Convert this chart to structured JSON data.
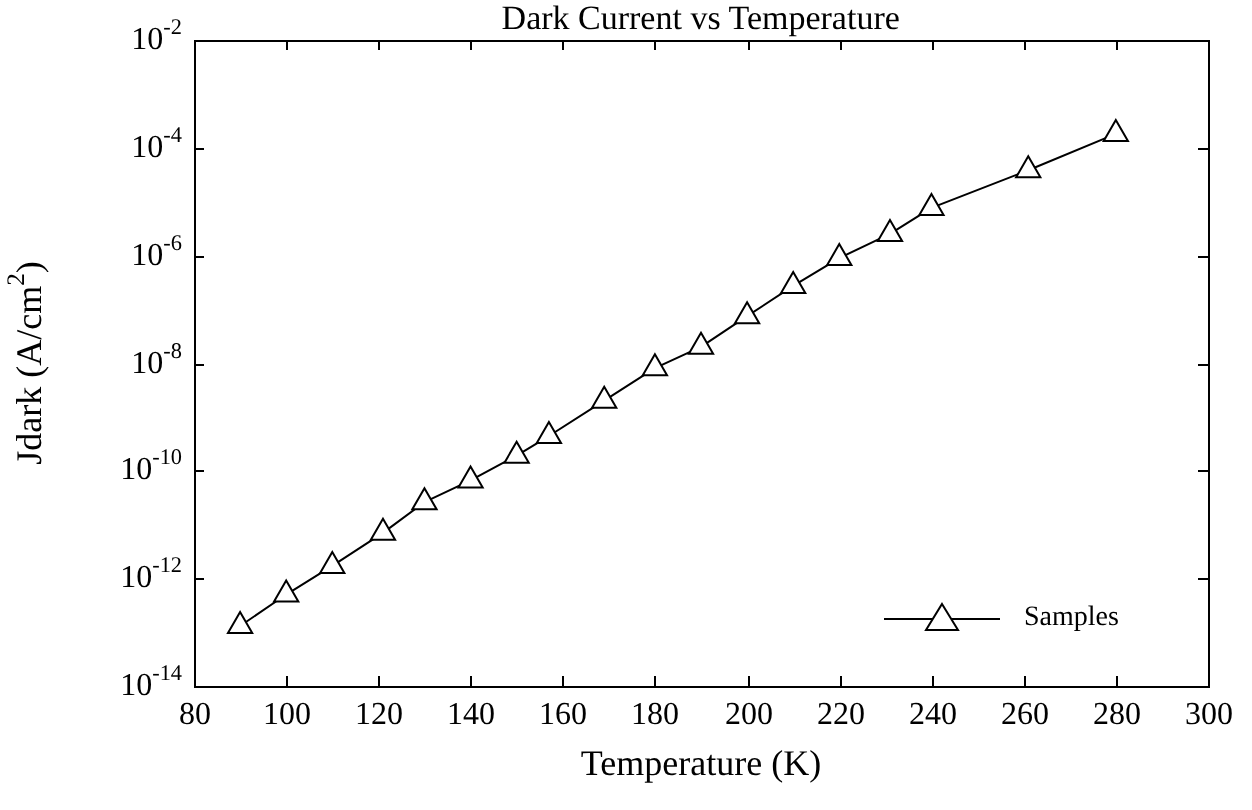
{
  "chart_data": {
    "type": "line",
    "title": "Dark Current vs Temperature",
    "xlabel": "Temperature (K)",
    "ylabel": "Jdark (A/cm$^{2}$)",
    "log": "y",
    "grid": false,
    "legend": "bottom right",
    "marker": "triangle",
    "line_style": "solid",
    "xlim": [
      80,
      300
    ],
    "xticks": [
      80,
      100,
      120,
      140,
      160,
      180,
      200,
      220,
      240,
      260,
      280,
      300
    ],
    "ylim": [
      1e-14,
      0.01
    ],
    "yticks": [
      {
        "value": 1e-14,
        "label": "10$^{-14}$"
      },
      {
        "value": 1e-12,
        "label": "10$^{-12}$"
      },
      {
        "value": 1e-10,
        "label": "10$^{-10}$"
      },
      {
        "value": 1e-08,
        "label": "10$^{-8}$"
      },
      {
        "value": 1e-06,
        "label": "10$^{-6}$"
      },
      {
        "value": 0.0001,
        "label": "10$^{-4}$"
      },
      {
        "value": 0.01,
        "label": "10$^{-2}$"
      }
    ],
    "x": [
      90,
      100,
      110,
      121,
      130,
      140,
      150,
      157,
      169,
      180,
      190,
      200,
      210,
      220,
      231,
      240,
      261,
      280
    ],
    "series": [
      {
        "name": "Samples",
        "color": "#000000",
        "values": [
          1.3e-13,
          5e-13,
          1.7e-12,
          7e-12,
          2.6e-11,
          6.6e-11,
          1.9e-10,
          4.4e-10,
          2e-09,
          8e-09,
          2e-08,
          7.4e-08,
          2.7e-07,
          8.9e-07,
          2.5e-06,
          7.6e-06,
          3.8e-05,
          0.00018
        ]
      }
    ]
  }
}
